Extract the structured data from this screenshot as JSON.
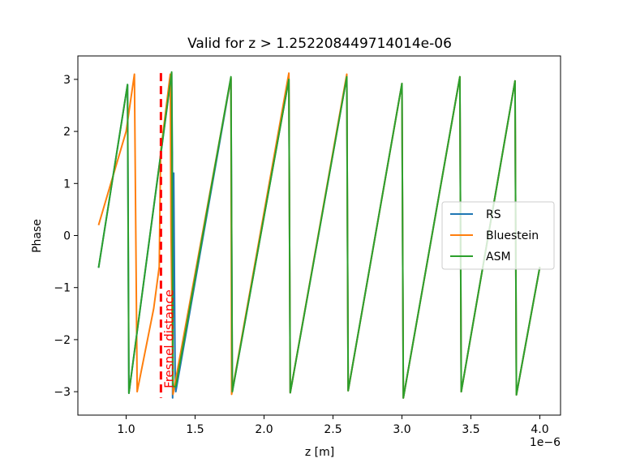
{
  "chart_data": {
    "type": "line",
    "title": "Valid for z > 1.252208449714014e-06",
    "xlabel": "z [m]",
    "ylabel": "Phase",
    "x_offset_label": "1e−6",
    "xlim": [
      0.65,
      4.15
    ],
    "ylim": [
      -3.45,
      3.45
    ],
    "x_ticks": [
      1.0,
      1.5,
      2.0,
      2.5,
      3.0,
      3.5,
      4.0
    ],
    "x_tick_labels": [
      "1.0",
      "1.5",
      "2.0",
      "2.5",
      "3.0",
      "3.5",
      "4.0"
    ],
    "y_ticks": [
      -3,
      -2,
      -1,
      0,
      1,
      2,
      3
    ],
    "y_tick_labels": [
      "−3",
      "−2",
      "−1",
      "0",
      "1",
      "2",
      "3"
    ],
    "grid": false,
    "legend_position": "center-right",
    "series": [
      {
        "name": "RS",
        "color": "#1f77b4",
        "x": [
          0.8,
          1.01,
          1.02,
          1.33,
          1.335,
          1.337,
          1.345,
          1.355,
          1.36,
          1.76,
          1.77,
          2.18,
          2.19,
          2.6,
          2.61,
          3.0,
          3.01,
          3.42,
          3.43,
          3.82,
          3.83,
          4.0
        ],
        "y": [
          -0.62,
          2.9,
          -3.03,
          3.12,
          1.6,
          -3.12,
          1.2,
          -2.6,
          -3.0,
          3.02,
          -3.0,
          3.0,
          -3.02,
          3.05,
          -2.98,
          2.92,
          -3.12,
          3.05,
          -3.0,
          2.97,
          -3.06,
          -0.6
        ]
      },
      {
        "name": "Bluestein",
        "color": "#ff7f0e",
        "x": [
          0.8,
          1.0,
          1.06,
          1.08,
          1.2,
          1.24,
          1.25,
          1.32,
          1.325,
          1.34,
          1.76,
          1.765,
          2.18,
          2.19,
          2.6,
          2.61,
          3.0,
          3.01,
          3.42,
          3.43,
          3.82,
          3.83,
          4.0
        ],
        "y": [
          0.2,
          2.0,
          3.1,
          -3.0,
          -1.4,
          -0.6,
          1.6,
          3.1,
          0.2,
          -3.05,
          3.03,
          -3.05,
          3.12,
          -3.02,
          3.1,
          -2.98,
          2.92,
          -3.12,
          3.05,
          -3.0,
          2.97,
          -3.06,
          -0.6
        ]
      },
      {
        "name": "ASM",
        "color": "#2ca02c",
        "x": [
          0.8,
          1.01,
          1.02,
          1.33,
          1.34,
          1.36,
          1.76,
          1.77,
          2.18,
          2.19,
          2.6,
          2.61,
          3.0,
          3.01,
          3.42,
          3.43,
          3.82,
          3.83,
          4.0
        ],
        "y": [
          -0.62,
          2.9,
          -3.03,
          3.14,
          -2.9,
          -2.9,
          3.05,
          -3.0,
          3.0,
          -3.02,
          3.05,
          -2.98,
          2.92,
          -3.12,
          3.05,
          -3.0,
          2.97,
          -3.06,
          -0.6
        ]
      }
    ],
    "annotations": [
      {
        "type": "vline",
        "x": 1.252208449714014,
        "y_range": [
          -3.12,
          3.12
        ],
        "color": "#ff0000",
        "style": "dashed",
        "label": "Fresnel distance"
      }
    ]
  }
}
